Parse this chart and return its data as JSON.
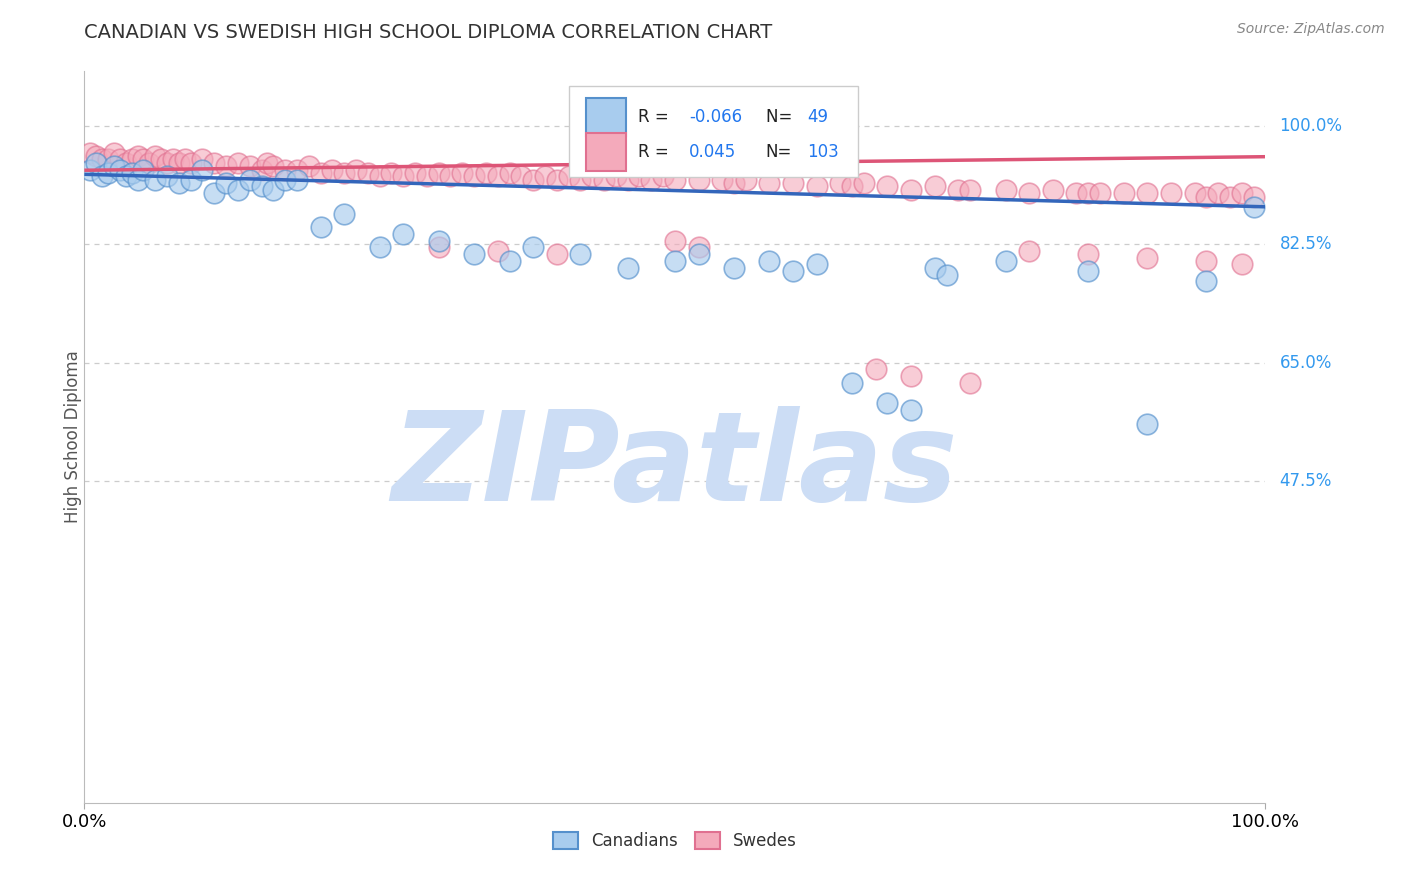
{
  "title": "CANADIAN VS SWEDISH HIGH SCHOOL DIPLOMA CORRELATION CHART",
  "source": "Source: ZipAtlas.com",
  "ylabel": "High School Diploma",
  "xlim": [
    0.0,
    1.0
  ],
  "ylim": [
    0.0,
    1.08
  ],
  "yticks_right": [
    1.0,
    0.825,
    0.65,
    0.475
  ],
  "ytick_labels_right": [
    "100.0%",
    "82.5%",
    "65.0%",
    "47.5%"
  ],
  "xtick_labels": [
    "0.0%",
    "100.0%"
  ],
  "canadian_R": -0.066,
  "canadian_N": 49,
  "swedish_R": 0.045,
  "swedish_N": 103,
  "blue_fill": "#A8CCEE",
  "blue_edge": "#5590CC",
  "pink_fill": "#F4AABB",
  "pink_edge": "#E07090",
  "blue_line": "#3366BB",
  "pink_line": "#DD5577",
  "title_color": "#333333",
  "axis_label_color": "#555555",
  "right_label_color": "#3399EE",
  "watermark_color": "#CCDDF5",
  "legend_R_color": "#2277EE",
  "grid_color": "#CCCCCC",
  "can_x": [
    0.005,
    0.01,
    0.015,
    0.02,
    0.025,
    0.03,
    0.035,
    0.04,
    0.045,
    0.05,
    0.06,
    0.07,
    0.08,
    0.09,
    0.1,
    0.11,
    0.12,
    0.13,
    0.14,
    0.15,
    0.16,
    0.17,
    0.18,
    0.2,
    0.22,
    0.25,
    0.27,
    0.3,
    0.33,
    0.36,
    0.38,
    0.42,
    0.46,
    0.5,
    0.52,
    0.55,
    0.58,
    0.6,
    0.62,
    0.65,
    0.68,
    0.7,
    0.72,
    0.73,
    0.78,
    0.85,
    0.9,
    0.95,
    0.99
  ],
  "can_y": [
    0.935,
    0.945,
    0.925,
    0.93,
    0.94,
    0.935,
    0.925,
    0.93,
    0.92,
    0.935,
    0.92,
    0.925,
    0.915,
    0.92,
    0.935,
    0.9,
    0.915,
    0.905,
    0.92,
    0.91,
    0.905,
    0.92,
    0.92,
    0.85,
    0.87,
    0.82,
    0.84,
    0.83,
    0.81,
    0.8,
    0.82,
    0.81,
    0.79,
    0.8,
    0.81,
    0.79,
    0.8,
    0.785,
    0.795,
    0.62,
    0.59,
    0.58,
    0.79,
    0.78,
    0.8,
    0.785,
    0.56,
    0.77,
    0.88
  ],
  "swe_x": [
    0.005,
    0.01,
    0.015,
    0.02,
    0.025,
    0.03,
    0.035,
    0.04,
    0.045,
    0.05,
    0.055,
    0.06,
    0.065,
    0.07,
    0.075,
    0.08,
    0.085,
    0.09,
    0.1,
    0.11,
    0.12,
    0.13,
    0.14,
    0.15,
    0.155,
    0.16,
    0.17,
    0.18,
    0.19,
    0.2,
    0.21,
    0.22,
    0.23,
    0.24,
    0.25,
    0.26,
    0.27,
    0.28,
    0.29,
    0.3,
    0.31,
    0.32,
    0.33,
    0.34,
    0.35,
    0.36,
    0.37,
    0.38,
    0.39,
    0.4,
    0.41,
    0.42,
    0.43,
    0.44,
    0.45,
    0.46,
    0.47,
    0.48,
    0.49,
    0.5,
    0.52,
    0.54,
    0.55,
    0.56,
    0.58,
    0.6,
    0.62,
    0.64,
    0.65,
    0.66,
    0.68,
    0.7,
    0.72,
    0.74,
    0.75,
    0.78,
    0.8,
    0.82,
    0.84,
    0.85,
    0.86,
    0.88,
    0.9,
    0.92,
    0.94,
    0.95,
    0.96,
    0.97,
    0.98,
    0.99,
    0.5,
    0.52,
    0.67,
    0.7,
    0.75,
    0.8,
    0.85,
    0.9,
    0.95,
    0.98,
    0.3,
    0.35,
    0.4
  ],
  "swe_y": [
    0.96,
    0.955,
    0.95,
    0.95,
    0.96,
    0.95,
    0.945,
    0.95,
    0.955,
    0.95,
    0.945,
    0.955,
    0.95,
    0.945,
    0.95,
    0.945,
    0.95,
    0.945,
    0.95,
    0.945,
    0.94,
    0.945,
    0.94,
    0.935,
    0.945,
    0.94,
    0.935,
    0.935,
    0.94,
    0.93,
    0.935,
    0.93,
    0.935,
    0.93,
    0.925,
    0.93,
    0.925,
    0.93,
    0.925,
    0.93,
    0.925,
    0.93,
    0.925,
    0.93,
    0.925,
    0.93,
    0.925,
    0.92,
    0.925,
    0.92,
    0.925,
    0.92,
    0.925,
    0.92,
    0.925,
    0.92,
    0.925,
    0.92,
    0.925,
    0.92,
    0.92,
    0.92,
    0.915,
    0.92,
    0.915,
    0.915,
    0.91,
    0.915,
    0.91,
    0.915,
    0.91,
    0.905,
    0.91,
    0.905,
    0.905,
    0.905,
    0.9,
    0.905,
    0.9,
    0.9,
    0.9,
    0.9,
    0.9,
    0.9,
    0.9,
    0.895,
    0.9,
    0.895,
    0.9,
    0.895,
    0.83,
    0.82,
    0.64,
    0.63,
    0.62,
    0.815,
    0.81,
    0.805,
    0.8,
    0.795,
    0.82,
    0.815,
    0.81
  ]
}
